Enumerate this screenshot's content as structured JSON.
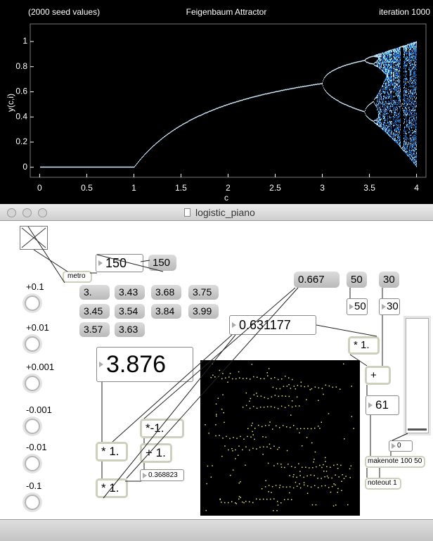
{
  "plot": {
    "title": "Feigenbaum Attractor",
    "subtitle": "(2000 seed values)",
    "iteration": "iteration 1000",
    "xlabel": "c",
    "ylabel": "y(c,i)",
    "xlim": [
      -0.1,
      4.1
    ],
    "ylim": [
      -0.08,
      1.14
    ],
    "xticks": [
      0,
      0.5,
      1,
      1.5,
      2,
      2.5,
      3,
      3.5,
      4
    ],
    "yticks": [
      0,
      0.2,
      0.4,
      0.6,
      0.8,
      1
    ]
  },
  "window": {
    "title": "logistic_piano"
  },
  "patcher": {
    "metro": "metro",
    "tempo_number": "150",
    "tempo_message": "150",
    "increments": [
      "+0.1",
      "+0.01",
      "+0.001",
      "-0.001",
      "-0.01",
      "-0.1"
    ],
    "presets": [
      "3.",
      "3.43",
      "3.68",
      "3.75",
      "3.45",
      "3.54",
      "3.84",
      "3.99",
      "3.57",
      "3.63"
    ],
    "c_number": "3.876",
    "x_number": "0.631177",
    "seed_message": "0.667",
    "msg_50": "50",
    "msg_30": "30",
    "num_50": "50",
    "num_30": "30",
    "scale_object": "* 1.",
    "add_object": "+",
    "note_number": "61",
    "slider_number": "0",
    "makenote": "makenote 100 50",
    "noteout": "noteout 1",
    "negate": "*-1.",
    "mul_a": "* 1.",
    "plus_one": "+ 1.",
    "one_minus_x": "0.368823",
    "mul_b": "* 1."
  }
}
